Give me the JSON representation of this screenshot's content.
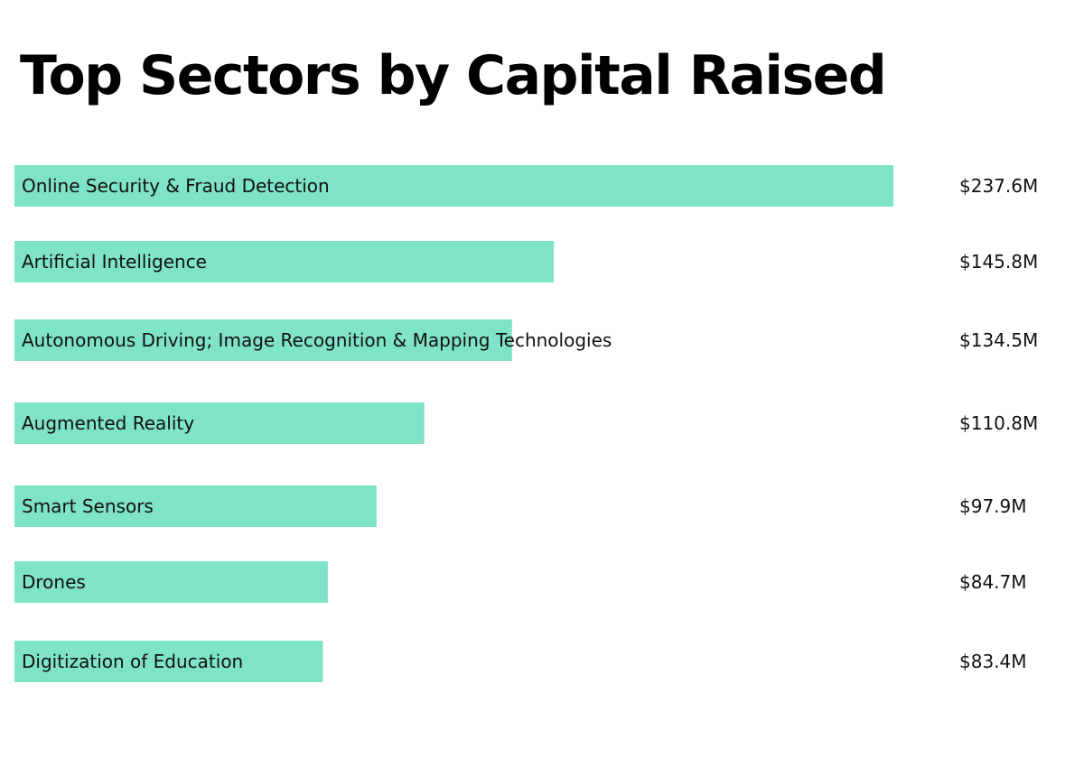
{
  "colors": {
    "bar": "#7FE3C5",
    "text": "#111111",
    "background": "#ffffff"
  },
  "chart_data": {
    "type": "bar",
    "orientation": "horizontal",
    "title": "Top Sectors by Capital Raised",
    "xlabel": "",
    "ylabel": "",
    "unit": "$M",
    "xlim": [
      0,
      237.6
    ],
    "grid": false,
    "legend": "none",
    "categories": [
      "Online Security & Fraud Detection",
      "Artificial Intelligence",
      "Autonomous Driving; Image Recognition & Mapping Technologies",
      "Augmented Reality",
      "Smart Sensors",
      "Drones",
      "Digitization of Education"
    ],
    "values": [
      237.6,
      145.8,
      134.5,
      110.8,
      97.9,
      84.7,
      83.4
    ],
    "value_labels": [
      "$237.6M",
      "$145.8M",
      "$134.5M",
      "$110.8M",
      "$97.9M",
      "$84.7M",
      "$83.4M"
    ]
  }
}
